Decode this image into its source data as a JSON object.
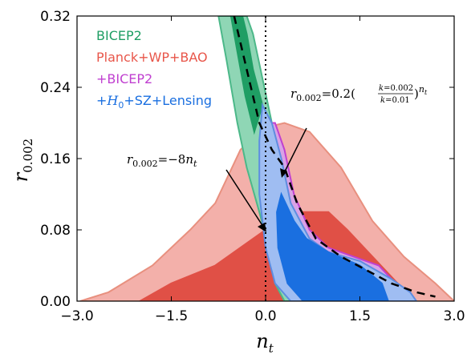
{
  "chart_data": {
    "type": "area",
    "title": "",
    "xlabel": "n_t",
    "ylabel": "r_0.002",
    "xlim": [
      -3.0,
      3.0
    ],
    "ylim": [
      0.0,
      0.32
    ],
    "xticks": [
      "−3.0",
      "−1.5",
      "0.0",
      "1.5",
      "3.0"
    ],
    "yticks": [
      "0.00",
      "0.08",
      "0.16",
      "0.24",
      "0.32"
    ],
    "legend_placement": "top-left",
    "legend": [
      {
        "name": "BICEP2",
        "color": "#1f9e64"
      },
      {
        "name": "Planck+WP+BAO",
        "color": "#e8564a"
      },
      {
        "name": "+BICEP2",
        "color": "#c040d0"
      },
      {
        "name": "+H0+SZ+Lensing",
        "color": "#1a6fe0"
      }
    ],
    "annotations": [
      {
        "text": "r_0.002 = −8 n_t",
        "arrow_to": [
          -0.05,
          0.08
        ]
      },
      {
        "text": "r_0.002 = 0.2 (k=0.002 / k=0.01)^n_t",
        "arrow_to": [
          0.3,
          0.135
        ]
      }
    ],
    "series": [
      {
        "name": "BICEP2",
        "type": "contour",
        "color": "#1f9e64",
        "outer_68": [
          [
            -0.75,
            0.32
          ],
          [
            -0.62,
            0.27
          ],
          [
            -0.45,
            0.2
          ],
          [
            -0.3,
            0.15
          ],
          [
            -0.1,
            0.1
          ],
          [
            0.05,
            0.06
          ],
          [
            0.15,
            0.02
          ],
          [
            0.3,
            0.0
          ],
          [
            0.55,
            0.0
          ],
          [
            0.55,
            0.03
          ],
          [
            0.4,
            0.07
          ],
          [
            0.35,
            0.1
          ],
          [
            0.25,
            0.15
          ],
          [
            0.1,
            0.2
          ],
          [
            -0.05,
            0.25
          ],
          [
            -0.2,
            0.3
          ],
          [
            -0.3,
            0.32
          ]
        ],
        "inner_68": [
          [
            -0.55,
            0.32
          ],
          [
            -0.45,
            0.28
          ],
          [
            -0.32,
            0.23
          ],
          [
            -0.18,
            0.19
          ],
          [
            -0.05,
            0.22
          ],
          [
            -0.2,
            0.26
          ],
          [
            -0.3,
            0.3
          ],
          [
            -0.37,
            0.32
          ]
        ]
      },
      {
        "name": "Planck+WP+BAO",
        "type": "contour",
        "color": "#e8564a",
        "outer_95": [
          [
            -2.95,
            0.0
          ],
          [
            -2.5,
            0.01
          ],
          [
            -1.8,
            0.04
          ],
          [
            -1.2,
            0.08
          ],
          [
            -0.8,
            0.11
          ],
          [
            -0.4,
            0.17
          ],
          [
            0.0,
            0.195
          ],
          [
            0.3,
            0.2
          ],
          [
            0.7,
            0.19
          ],
          [
            1.2,
            0.15
          ],
          [
            1.7,
            0.09
          ],
          [
            2.2,
            0.05
          ],
          [
            2.7,
            0.02
          ],
          [
            3.0,
            0.0
          ]
        ],
        "inner_68": [
          [
            -2.0,
            0.0
          ],
          [
            -1.5,
            0.02
          ],
          [
            -0.8,
            0.04
          ],
          [
            -0.2,
            0.07
          ],
          [
            0.2,
            0.09
          ],
          [
            0.6,
            0.1
          ],
          [
            1.0,
            0.1
          ],
          [
            1.3,
            0.08
          ],
          [
            1.7,
            0.05
          ],
          [
            2.1,
            0.02
          ],
          [
            2.3,
            0.0
          ]
        ]
      },
      {
        "name": "+BICEP2",
        "type": "contour",
        "color": "#c040d0",
        "outer_95": [
          [
            -0.02,
            0.2
          ],
          [
            0.15,
            0.2
          ],
          [
            0.3,
            0.17
          ],
          [
            0.45,
            0.12
          ],
          [
            0.7,
            0.08
          ],
          [
            1.0,
            0.06
          ],
          [
            1.4,
            0.05
          ],
          [
            1.8,
            0.04
          ],
          [
            2.0,
            0.025
          ],
          [
            2.15,
            0.01
          ],
          [
            2.3,
            0.0
          ],
          [
            1.6,
            0.0
          ],
          [
            1.0,
            0.0
          ],
          [
            0.5,
            0.0
          ],
          [
            0.2,
            0.02
          ],
          [
            0.05,
            0.05
          ],
          [
            -0.05,
            0.1
          ],
          [
            -0.05,
            0.15
          ]
        ]
      },
      {
        "name": "+H0+SZ+Lensing",
        "type": "contour",
        "color": "#1a6fe0",
        "outer_95": [
          [
            -0.05,
            0.22
          ],
          [
            0.1,
            0.2
          ],
          [
            0.25,
            0.16
          ],
          [
            0.4,
            0.11
          ],
          [
            0.7,
            0.07
          ],
          [
            1.0,
            0.055
          ],
          [
            1.5,
            0.045
          ],
          [
            2.0,
            0.025
          ],
          [
            2.3,
            0.01
          ],
          [
            2.4,
            0.0
          ],
          [
            1.6,
            0.0
          ],
          [
            0.8,
            0.0
          ],
          [
            0.4,
            0.0
          ],
          [
            0.15,
            0.02
          ],
          [
            0.0,
            0.06
          ],
          [
            -0.1,
            0.12
          ],
          [
            -0.1,
            0.18
          ]
        ],
        "inner_68": [
          [
            0.25,
            0.12
          ],
          [
            0.45,
            0.09
          ],
          [
            0.65,
            0.07
          ],
          [
            1.0,
            0.055
          ],
          [
            1.5,
            0.04
          ],
          [
            1.85,
            0.02
          ],
          [
            1.95,
            0.0
          ],
          [
            1.1,
            0.0
          ],
          [
            0.6,
            0.0
          ],
          [
            0.35,
            0.02
          ],
          [
            0.2,
            0.06
          ],
          [
            0.18,
            0.1
          ]
        ]
      },
      {
        "name": "r=-8n_t",
        "type": "line",
        "style": "dotted",
        "color": "#000000",
        "points": [
          [
            0.0,
            0.0
          ],
          [
            0.0,
            0.32
          ]
        ]
      },
      {
        "name": "r=0.2(k ratio)^n_t",
        "type": "line",
        "style": "dashed",
        "color": "#000000",
        "points": [
          [
            -0.5,
            0.32
          ],
          [
            -0.3,
            0.26
          ],
          [
            -0.1,
            0.2
          ],
          [
            0.1,
            0.17
          ],
          [
            0.3,
            0.15
          ],
          [
            0.5,
            0.11
          ],
          [
            0.8,
            0.07
          ],
          [
            1.2,
            0.05
          ],
          [
            1.6,
            0.035
          ],
          [
            2.0,
            0.02
          ],
          [
            2.4,
            0.01
          ],
          [
            2.7,
            0.005
          ]
        ]
      }
    ]
  }
}
